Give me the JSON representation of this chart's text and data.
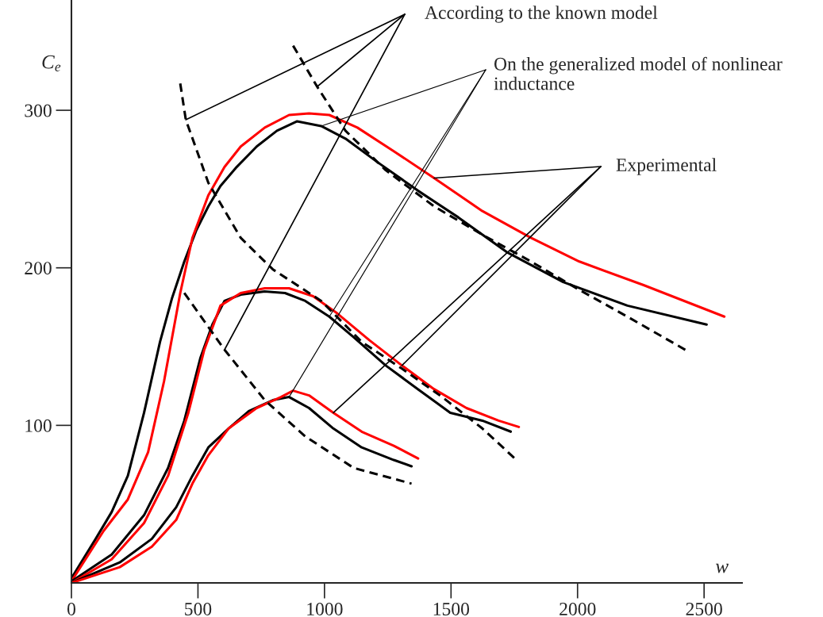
{
  "chart_data": {
    "type": "line",
    "xlabel": "w",
    "ylabel": "C$_{e}$",
    "xlim": [
      0,
      2650
    ],
    "ylim": [
      0,
      370
    ],
    "xticks": [
      0,
      500,
      1000,
      1500,
      2000,
      2500
    ],
    "yticks": [
      100,
      200,
      300
    ],
    "grid": false,
    "legend": false,
    "marker": "none",
    "series": [
      {
        "color": "#000000",
        "line_style": "solid",
        "x": [
          0,
          96,
          159,
          223,
          287,
          350,
          398,
          446,
          494,
          541,
          589,
          653,
          732,
          812,
          892,
          987,
          1083,
          1210,
          1369,
          1529,
          1720,
          1943,
          2197,
          2510
        ],
        "values": [
          3,
          28,
          45,
          68,
          108,
          153,
          181,
          204,
          224,
          239,
          252,
          264,
          277,
          287,
          293,
          290,
          282,
          267,
          249,
          232,
          210,
          191,
          176,
          164
        ]
      },
      {
        "color": "#ff0000",
        "line_style": "solid",
        "x": [
          0,
          127,
          223,
          303,
          366,
          430,
          478,
          541,
          605,
          669,
          764,
          860,
          939,
          1019,
          1130,
          1274,
          1433,
          1624,
          1816,
          2007,
          2261,
          2580
        ],
        "values": [
          1,
          33,
          53,
          83,
          128,
          184,
          219,
          246,
          264,
          277,
          289,
          297,
          298,
          297,
          289,
          274,
          257,
          236,
          219,
          204,
          189,
          169
        ]
      },
      {
        "color": "#000000",
        "line_style": "solid",
        "x": [
          0,
          159,
          287,
          382,
          446,
          510,
          557,
          605,
          669,
          764,
          844,
          924,
          1019,
          1115,
          1242,
          1369,
          1497,
          1624,
          1736
        ],
        "values": [
          1,
          18,
          43,
          73,
          103,
          143,
          164,
          179,
          183,
          185,
          184,
          179,
          169,
          156,
          138,
          123,
          108,
          103,
          96
        ]
      },
      {
        "color": "#ff0000",
        "line_style": "solid",
        "x": [
          0,
          159,
          287,
          382,
          462,
          525,
          589,
          669,
          764,
          860,
          955,
          1051,
          1178,
          1306,
          1433,
          1561,
          1688,
          1768
        ],
        "values": [
          0,
          15,
          38,
          68,
          108,
          148,
          176,
          184,
          187,
          187,
          182,
          171,
          154,
          138,
          123,
          111,
          103,
          99
        ]
      },
      {
        "color": "#000000",
        "line_style": "solid",
        "x": [
          0,
          191,
          318,
          414,
          478,
          541,
          621,
          701,
          796,
          860,
          939,
          1035,
          1147,
          1274,
          1344
        ],
        "values": [
          0,
          13,
          28,
          48,
          68,
          86,
          98,
          109,
          116,
          118,
          111,
          98,
          86,
          78,
          74
        ]
      },
      {
        "color": "#ff0000",
        "line_style": "solid",
        "x": [
          0,
          191,
          318,
          414,
          478,
          541,
          621,
          732,
          828,
          876,
          939,
          1035,
          1147,
          1274,
          1370
        ],
        "values": [
          0,
          10,
          23,
          40,
          63,
          81,
          98,
          111,
          118,
          122,
          119,
          108,
          96,
          87,
          79
        ]
      },
      {
        "color": "#000000",
        "line_style": "dashed",
        "x": [
          430,
          452,
          541,
          669,
          796,
          987,
          1147,
          1306,
          1465,
          1624,
          1752
        ],
        "values": [
          317,
          294,
          254,
          219,
          199,
          179,
          153,
          136,
          118,
          98,
          79
        ]
      },
      {
        "color": "#000000",
        "line_style": "dashed",
        "x": [
          876,
          971,
          1083,
          1242,
          1433,
          1624,
          1816,
          2007,
          2197,
          2436
        ],
        "values": [
          341,
          315,
          287,
          262,
          239,
          221,
          204,
          186,
          169,
          147
        ]
      },
      {
        "color": "#000000",
        "line_style": "dashed",
        "x": [
          446,
          605,
          764,
          924,
          1115,
          1344
        ],
        "values": [
          184,
          148,
          116,
          93,
          73,
          63
        ]
      }
    ],
    "annotations": [
      {
        "text": "According to the known model",
        "x": 452,
        "y": 294
      },
      {
        "text": "On the generalized model of nonlinear inductance",
        "x": 987,
        "y": 290
      },
      {
        "text": "Experimental",
        "x": 1433,
        "y": 257
      }
    ]
  }
}
